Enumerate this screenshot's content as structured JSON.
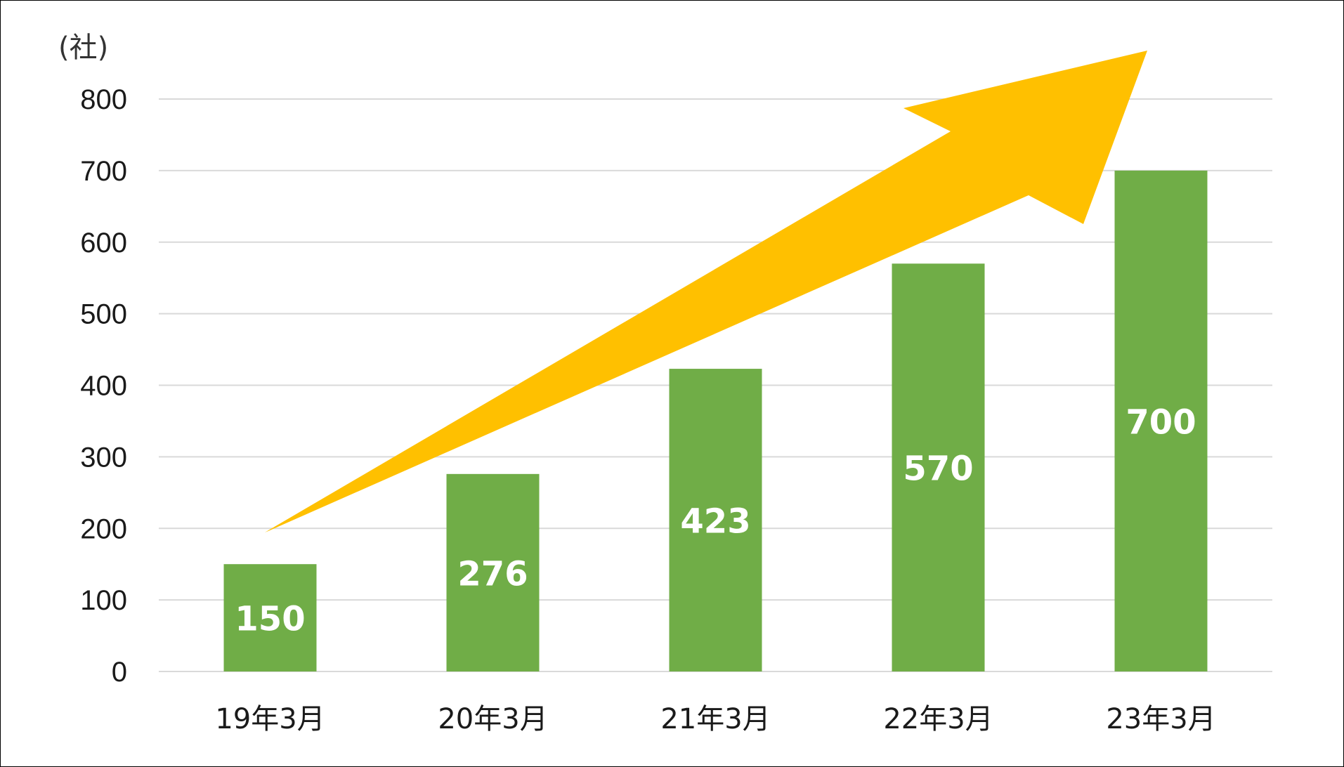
{
  "chart_data": {
    "type": "bar",
    "unit_label": "(社)",
    "categories": [
      "19年3月",
      "20年3月",
      "21年3月",
      "22年3月",
      "23年3月"
    ],
    "values": [
      150,
      276,
      423,
      570,
      700
    ],
    "ylim": [
      0,
      800
    ],
    "yticks": [
      "0",
      "100",
      "200",
      "300",
      "400",
      "500",
      "600",
      "700",
      "800"
    ],
    "grid": true,
    "legend": "none",
    "data_labels": [
      "150",
      "276",
      "423",
      "570",
      "700"
    ]
  },
  "colors": {
    "bar": "#70AD47",
    "arrow": "#FFC000",
    "grid": "#D9D9D9",
    "data_label": "#FFFFFF"
  },
  "icons": {
    "trend_arrow": "upward-trend-arrow-icon"
  }
}
